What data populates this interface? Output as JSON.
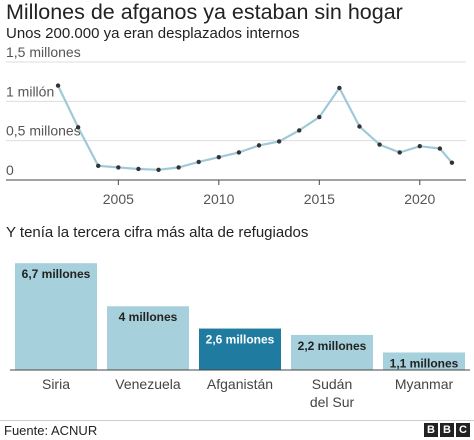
{
  "title": "Millones de afganos ya estaban sin hogar",
  "chart_data": [
    {
      "type": "line",
      "subtitle": "Unos 200.000 ya eran desplazados internos",
      "x": [
        2002,
        2003,
        2004,
        2005,
        2006,
        2007,
        2008,
        2009,
        2010,
        2011,
        2012,
        2013,
        2014,
        2015,
        2016,
        2017,
        2018,
        2019,
        2020,
        2021,
        2021.6
      ],
      "values": [
        1.2,
        0.67,
        0.18,
        0.16,
        0.14,
        0.13,
        0.16,
        0.23,
        0.29,
        0.35,
        0.44,
        0.49,
        0.63,
        0.8,
        1.17,
        0.68,
        0.45,
        0.35,
        0.43,
        0.4,
        0.22
      ],
      "xlim": [
        2001.5,
        2022.3
      ],
      "ylim": [
        0,
        1.5
      ],
      "xticks": [
        2005,
        2010,
        2015,
        2020
      ],
      "yticks": [
        {
          "value": 0,
          "label": "0"
        },
        {
          "value": 0.5,
          "label": "0,5 millones"
        },
        {
          "value": 1,
          "label": "1 millón"
        },
        {
          "value": 1.5,
          "label": "1,5 millones"
        }
      ],
      "grid": true,
      "color": "#9fc9d9",
      "marker_color": "#333333"
    },
    {
      "type": "bar",
      "subtitle": "Y tenía la tercera cifra más alta de refugiados",
      "categories": [
        {
          "lines": [
            "Siria"
          ]
        },
        {
          "lines": [
            "Venezuela"
          ]
        },
        {
          "lines": [
            "Afganistán"
          ]
        },
        {
          "lines": [
            "Sudán",
            "del Sur"
          ]
        },
        {
          "lines": [
            "Myanmar"
          ]
        }
      ],
      "values": [
        6.7,
        4.0,
        2.6,
        2.2,
        1.1
      ],
      "value_labels": [
        "6,7 millones",
        "4 millones",
        "2,6 millones",
        "2,2 millones",
        "1,1 millones"
      ],
      "ylim": [
        0,
        6.9
      ],
      "highlight_index": 2,
      "color": "#a7d0dd",
      "highlight_color": "#1f7ca0"
    }
  ],
  "footer": {
    "source": "Fuente: ACNUR",
    "logo_letters": [
      "B",
      "B",
      "C"
    ]
  }
}
